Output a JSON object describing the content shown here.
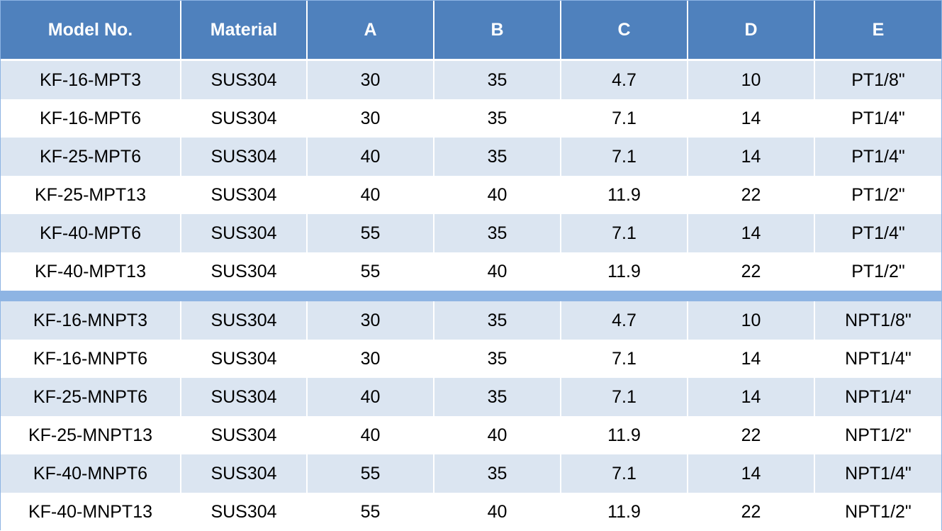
{
  "table": {
    "headers": [
      "Model No.",
      "Material",
      "A",
      "B",
      "C",
      "D",
      "E"
    ],
    "groups": [
      {
        "rows": [
          [
            "KF-16-MPT3",
            "SUS304",
            "30",
            "35",
            "4.7",
            "10",
            "PT1/8\""
          ],
          [
            "KF-16-MPT6",
            "SUS304",
            "30",
            "35",
            "7.1",
            "14",
            "PT1/4\""
          ],
          [
            "KF-25-MPT6",
            "SUS304",
            "40",
            "35",
            "7.1",
            "14",
            "PT1/4\""
          ],
          [
            "KF-25-MPT13",
            "SUS304",
            "40",
            "40",
            "11.9",
            "22",
            "PT1/2\""
          ],
          [
            "KF-40-MPT6",
            "SUS304",
            "55",
            "35",
            "7.1",
            "14",
            "PT1/4\""
          ],
          [
            "KF-40-MPT13",
            "SUS304",
            "55",
            "40",
            "11.9",
            "22",
            "PT1/2\""
          ]
        ]
      },
      {
        "rows": [
          [
            "KF-16-MNPT3",
            "SUS304",
            "30",
            "35",
            "4.7",
            "10",
            "NPT1/8\""
          ],
          [
            "KF-16-MNPT6",
            "SUS304",
            "30",
            "35",
            "7.1",
            "14",
            "NPT1/4\""
          ],
          [
            "KF-25-MNPT6",
            "SUS304",
            "40",
            "35",
            "7.1",
            "14",
            "NPT1/4\""
          ],
          [
            "KF-25-MNPT13",
            "SUS304",
            "40",
            "40",
            "11.9",
            "22",
            "NPT1/2\""
          ],
          [
            "KF-40-MNPT6",
            "SUS304",
            "55",
            "35",
            "7.1",
            "14",
            "NPT1/4\""
          ],
          [
            "KF-40-MNPT13",
            "SUS304",
            "55",
            "40",
            "11.9",
            "22",
            "NPT1/2\""
          ]
        ]
      }
    ]
  },
  "colors": {
    "header_bg": "#4f81bd",
    "header_text": "#ffffff",
    "row_band": "#dbe5f1",
    "row_plain": "#ffffff",
    "separator": "#8eb4e3"
  }
}
